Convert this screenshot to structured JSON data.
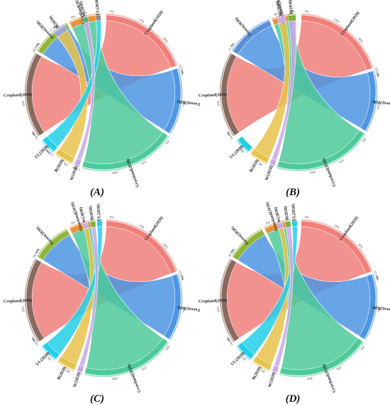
{
  "chart_data": [
    {
      "type": "chord",
      "panel_label": "(A)",
      "sectors": [
        {
          "name": "Cropland(2020)",
          "percent": "",
          "color": "#F07F7A"
        },
        {
          "name": "Forest(2020)",
          "percent": "12.51%",
          "color": "#4E95E3"
        },
        {
          "name": "Grassland(2020)",
          "percent": "",
          "color": "#4DC99A"
        },
        {
          "name": "W(2020)",
          "percent": "1.58%",
          "color": "#C9A8E6"
        },
        {
          "name": "B(2020)",
          "percent": "",
          "color": "#E6C24A"
        },
        {
          "name": "UL(2020)",
          "percent": "5.68%",
          "color": "#22CFE8"
        },
        {
          "name": "Cropland(2030)",
          "percent": "14.0%",
          "color": "#8A6A5E"
        },
        {
          "name": "Forest(2030)",
          "percent": "19.03%",
          "color": "#8FB63A"
        },
        {
          "name": "Grassland(2030)",
          "percent": "",
          "color": "#E8933A"
        },
        {
          "name": "B(2030)",
          "percent": "17.3%",
          "color": "#9AA7D6"
        },
        {
          "name": "W(2030)",
          "percent": "1.08%",
          "color": "#4FB08A"
        },
        {
          "name": "UL(2030)",
          "percent": "",
          "color": "#9A8A8A"
        }
      ],
      "tick_labels": [
        "0%",
        "15%",
        "30%"
      ]
    },
    {
      "type": "chord",
      "panel_label": "(B)",
      "sectors": [
        {
          "name": "Cropland(2020)",
          "percent": "",
          "color": "#F07F7A"
        },
        {
          "name": "Forest(2020)",
          "percent": "10.52%",
          "color": "#4E95E3"
        },
        {
          "name": "Grassland(2020)",
          "percent": "",
          "color": "#4DC99A"
        },
        {
          "name": "W(2020)",
          "percent": "",
          "color": "#C9A8E6"
        },
        {
          "name": "B(2020)",
          "percent": "",
          "color": "#E6C24A"
        },
        {
          "name": "UL(2020)",
          "percent": "",
          "color": "#22CFE8"
        },
        {
          "name": "Cropland(2030)",
          "percent": "16.4%",
          "color": "#8A6A5E"
        },
        {
          "name": "Forest(2030)",
          "percent": "11.3%",
          "color": "#5B8FD9"
        },
        {
          "name": "Grassland(2030)",
          "percent": "",
          "color": "#E8933A"
        },
        {
          "name": "W(2030)",
          "percent": "",
          "color": "#C9A8E6"
        },
        {
          "name": "B(2030)",
          "percent": "",
          "color": "#7FB03A"
        }
      ],
      "tick_labels": [
        "0%",
        "15%",
        "30%"
      ]
    },
    {
      "type": "chord",
      "panel_label": "(C)",
      "sectors": [
        {
          "name": "Cropland(2020)",
          "percent": "",
          "color": "#F07F7A"
        },
        {
          "name": "Forest(2020)",
          "percent": "12.45%",
          "color": "#4E95E3"
        },
        {
          "name": "Grassland(2020)",
          "percent": "",
          "color": "#4DC99A"
        },
        {
          "name": "W(2020)",
          "percent": "",
          "color": "#C9A8E6"
        },
        {
          "name": "B(2020)",
          "percent": "",
          "color": "#E6C24A"
        },
        {
          "name": "UL(2020)",
          "percent": "",
          "color": "#22CFE8"
        },
        {
          "name": "Cropland(2030)",
          "percent": "14.0%",
          "color": "#8A6A5E"
        },
        {
          "name": "Forest(2030)",
          "percent": "16.50%",
          "color": "#8FB63A"
        },
        {
          "name": "Grassland(2030)",
          "percent": "",
          "color": "#E8933A"
        },
        {
          "name": "W(2030)",
          "percent": "",
          "color": "#C9A8E6"
        },
        {
          "name": "B(2030)",
          "percent": "",
          "color": "#7FB03A"
        },
        {
          "name": "UL(2030)",
          "percent": "",
          "color": "#22CFE8"
        }
      ],
      "tick_labels": [
        "0%",
        "15%",
        "30%"
      ]
    },
    {
      "type": "chord",
      "panel_label": "(D)",
      "sectors": [
        {
          "name": "Cropland(2020)",
          "percent": "",
          "color": "#F07F7A"
        },
        {
          "name": "Forest(2020)",
          "percent": "12.16%",
          "color": "#4E95E3"
        },
        {
          "name": "Grassland(2020)",
          "percent": "",
          "color": "#4DC99A"
        },
        {
          "name": "W(2020)",
          "percent": "",
          "color": "#C9A8E6"
        },
        {
          "name": "B(2020)",
          "percent": "",
          "color": "#E6C24A"
        },
        {
          "name": "UL(2020)",
          "percent": "",
          "color": "#22CFE8"
        },
        {
          "name": "Cropland(2030)",
          "percent": "14.4%",
          "color": "#8A6A5E"
        },
        {
          "name": "Forest(2030)",
          "percent": "16.9%",
          "color": "#8FB63A"
        },
        {
          "name": "Grassland(2030)",
          "percent": "",
          "color": "#E8933A"
        },
        {
          "name": "W(2030)",
          "percent": "",
          "color": "#C9A8E6"
        },
        {
          "name": "B(2030)",
          "percent": "",
          "color": "#7FB03A"
        },
        {
          "name": "UL(2030)",
          "percent": "",
          "color": "#22CFE8"
        }
      ],
      "tick_labels": [
        "0%",
        "15%",
        "30%"
      ]
    }
  ]
}
